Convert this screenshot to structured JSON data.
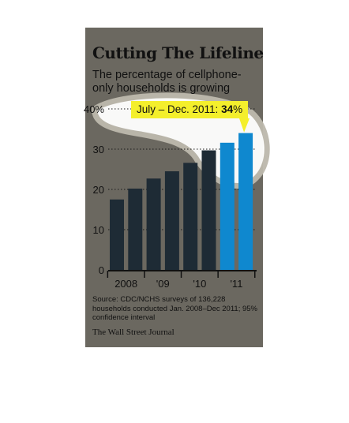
{
  "title": "Cutting The Lifeline",
  "subtitle": "The percentage of cellphone-only households is growing",
  "callout": {
    "label": "July – Dec. 2011: ",
    "value": "34",
    "unit": "%"
  },
  "source": "Source: CDC/NCHS surveys of 136,228 households conducted Jan. 2008–Dec 2011; 95% confidence interval",
  "credit": "The Wall Street Journal",
  "colors": {
    "card": "#6b6860",
    "bar_dark": "#1e2b35",
    "bar_highlight": "#0f88cf",
    "callout_bg": "#f4ef2c"
  },
  "chart_data": {
    "type": "bar",
    "title": "Cutting The Lifeline",
    "subtitle": "The percentage of cellphone-only households is growing",
    "xlabel": "",
    "ylabel": "",
    "ylim": [
      0,
      40
    ],
    "yticks": [
      "0",
      "10",
      "20",
      "30",
      "40%"
    ],
    "year_labels": [
      "2008",
      "'09",
      "'10",
      "'11"
    ],
    "bar_groups": [
      0,
      0,
      1,
      1,
      2,
      2,
      3,
      3
    ],
    "values": [
      17.5,
      20.2,
      22.7,
      24.5,
      26.6,
      29.7,
      31.6,
      34.0
    ],
    "highlight_from_index": 6,
    "grid": "dotted horizontal at each tick"
  }
}
